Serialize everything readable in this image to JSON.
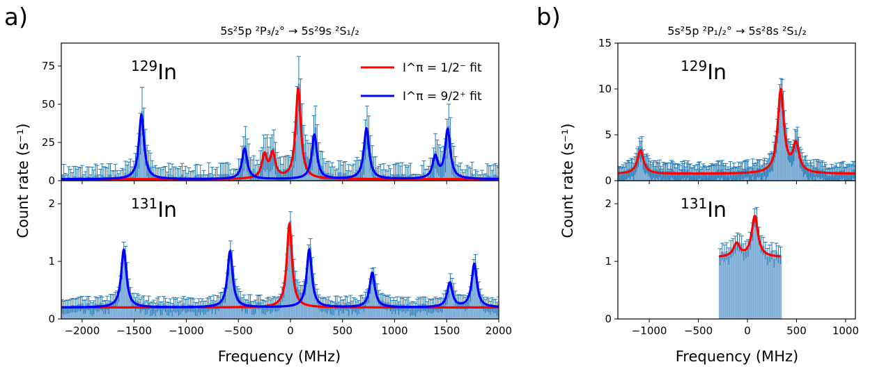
{
  "panels": {
    "a": {
      "label": "a)",
      "title": "5s²5p ²P₃/₂° → 5s²9s ²S₁/₂"
    },
    "b": {
      "label": "b)",
      "title": "5s²5p ²P₁/₂° → 5s²8s ²S₁/₂"
    }
  },
  "legend": {
    "entry_red": "I^π = 1/2⁻ fit",
    "entry_blue": "I^π = 9/2⁺ fit"
  },
  "colors": {
    "data": "#1f77b4",
    "bar": "#8fb8dc",
    "fit_red": "#ff0000",
    "fit_blue": "#0000ff"
  },
  "chart_data": [
    {
      "id": "a-top",
      "type": "bar",
      "isotope_mass": "129",
      "isotope_symbol": "In",
      "xlabel": "",
      "ylabel": "",
      "xlim": [
        -2200,
        2000
      ],
      "ylim": [
        0,
        90
      ],
      "yticks": [
        0,
        25,
        50,
        75
      ],
      "xticks": [
        -2000,
        -1500,
        -1000,
        -500,
        0,
        500,
        1000,
        1500,
        2000
      ],
      "xtick_labels": [],
      "background": 1.0,
      "series": [
        {
          "color": "red",
          "peaks": [
            [
              -250,
              16
            ],
            [
              -170,
              17
            ],
            [
              75,
              60
            ]
          ]
        },
        {
          "color": "blue",
          "peaks": [
            [
              -1430,
              43
            ],
            [
              -440,
              21
            ],
            [
              230,
              30
            ],
            [
              730,
              34
            ],
            [
              1390,
              15
            ],
            [
              1510,
              33
            ]
          ]
        }
      ]
    },
    {
      "id": "a-bottom",
      "type": "bar",
      "isotope_mass": "131",
      "isotope_symbol": "In",
      "xlabel": "Frequency (MHz)",
      "ylabel": "",
      "xlim": [
        -2200,
        2000
      ],
      "ylim": [
        0,
        2.4
      ],
      "yticks": [
        0,
        1,
        2
      ],
      "xticks": [
        -2000,
        -1500,
        -1000,
        -500,
        0,
        500,
        1000,
        1500,
        2000
      ],
      "xtick_labels": [
        "−2000",
        "−1500",
        "−1000",
        "−500",
        "0",
        "500",
        "1000",
        "1500",
        "2000"
      ],
      "background": 0.2,
      "series": [
        {
          "color": "red",
          "peaks": [
            [
              -10,
              1.65
            ]
          ]
        },
        {
          "color": "blue",
          "peaks": [
            [
              -1600,
              1.2
            ],
            [
              -580,
              1.17
            ],
            [
              180,
              1.2
            ],
            [
              785,
              0.8
            ],
            [
              1530,
              0.62
            ],
            [
              1765,
              0.95
            ]
          ]
        }
      ]
    },
    {
      "id": "b-top",
      "type": "bar",
      "isotope_mass": "129",
      "isotope_symbol": "In",
      "xlabel": "",
      "ylabel": "",
      "xlim": [
        -1320,
        1100
      ],
      "ylim": [
        0,
        15
      ],
      "yticks": [
        0,
        5,
        10,
        15
      ],
      "xticks": [
        -1000,
        -500,
        0,
        500,
        1000
      ],
      "xtick_labels": [],
      "background": 0.75,
      "series": [
        {
          "color": "red",
          "peaks": [
            [
              -1090,
              3.3
            ],
            [
              340,
              9.8
            ],
            [
              495,
              3.8
            ]
          ]
        }
      ]
    },
    {
      "id": "b-bottom",
      "type": "bar",
      "isotope_mass": "131",
      "isotope_symbol": "In",
      "xlabel": "Frequency (MHz)",
      "ylabel": "",
      "xlim": [
        -1320,
        1100
      ],
      "ylim": [
        0,
        2.4
      ],
      "yticks": [
        0,
        1,
        2
      ],
      "xticks": [
        -1000,
        -500,
        0,
        500,
        1000
      ],
      "xtick_labels": [
        "−1000",
        "−500",
        "0",
        "500",
        "1000"
      ],
      "background": 1.07,
      "data_range": [
        -290,
        340
      ],
      "series": [
        {
          "color": "red",
          "peaks": [
            [
              -110,
              1.3
            ],
            [
              75,
              1.78
            ]
          ]
        }
      ]
    }
  ],
  "shared_ylabel": "Count rate (s⁻¹)"
}
